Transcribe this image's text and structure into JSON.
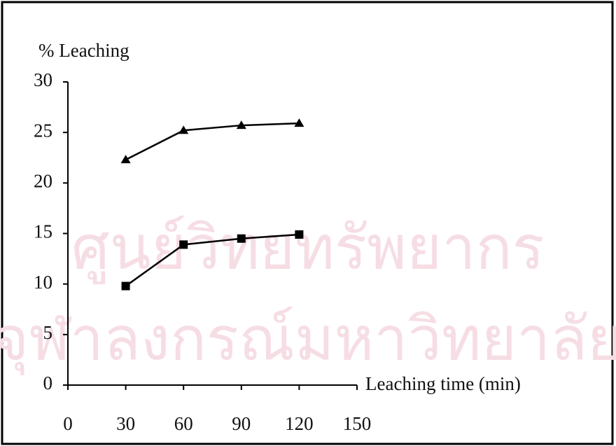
{
  "chart_data": {
    "type": "line",
    "watermark": [
      "ศูนย์วิทยทรัพยากร",
      "จุฬาลงกรณ์มหาวิทยาลัย"
    ],
    "ylabel": "% Leaching",
    "xlabel": "Leaching time (min)",
    "x": [
      30,
      60,
      90,
      120
    ],
    "series": [
      {
        "color": "#000000",
        "marker": "triangle",
        "values": [
          22.3,
          25.2,
          25.7,
          25.9
        ]
      },
      {
        "color": "#000000",
        "marker": "square",
        "values": [
          9.8,
          13.9,
          14.5,
          14.9
        ]
      }
    ],
    "xlim": [
      0,
      150
    ],
    "xticks": [
      0,
      30,
      60,
      90,
      120,
      150
    ],
    "ylim": [
      0,
      30
    ],
    "yticks": [
      0,
      5,
      10,
      15,
      20,
      25,
      30
    ]
  }
}
